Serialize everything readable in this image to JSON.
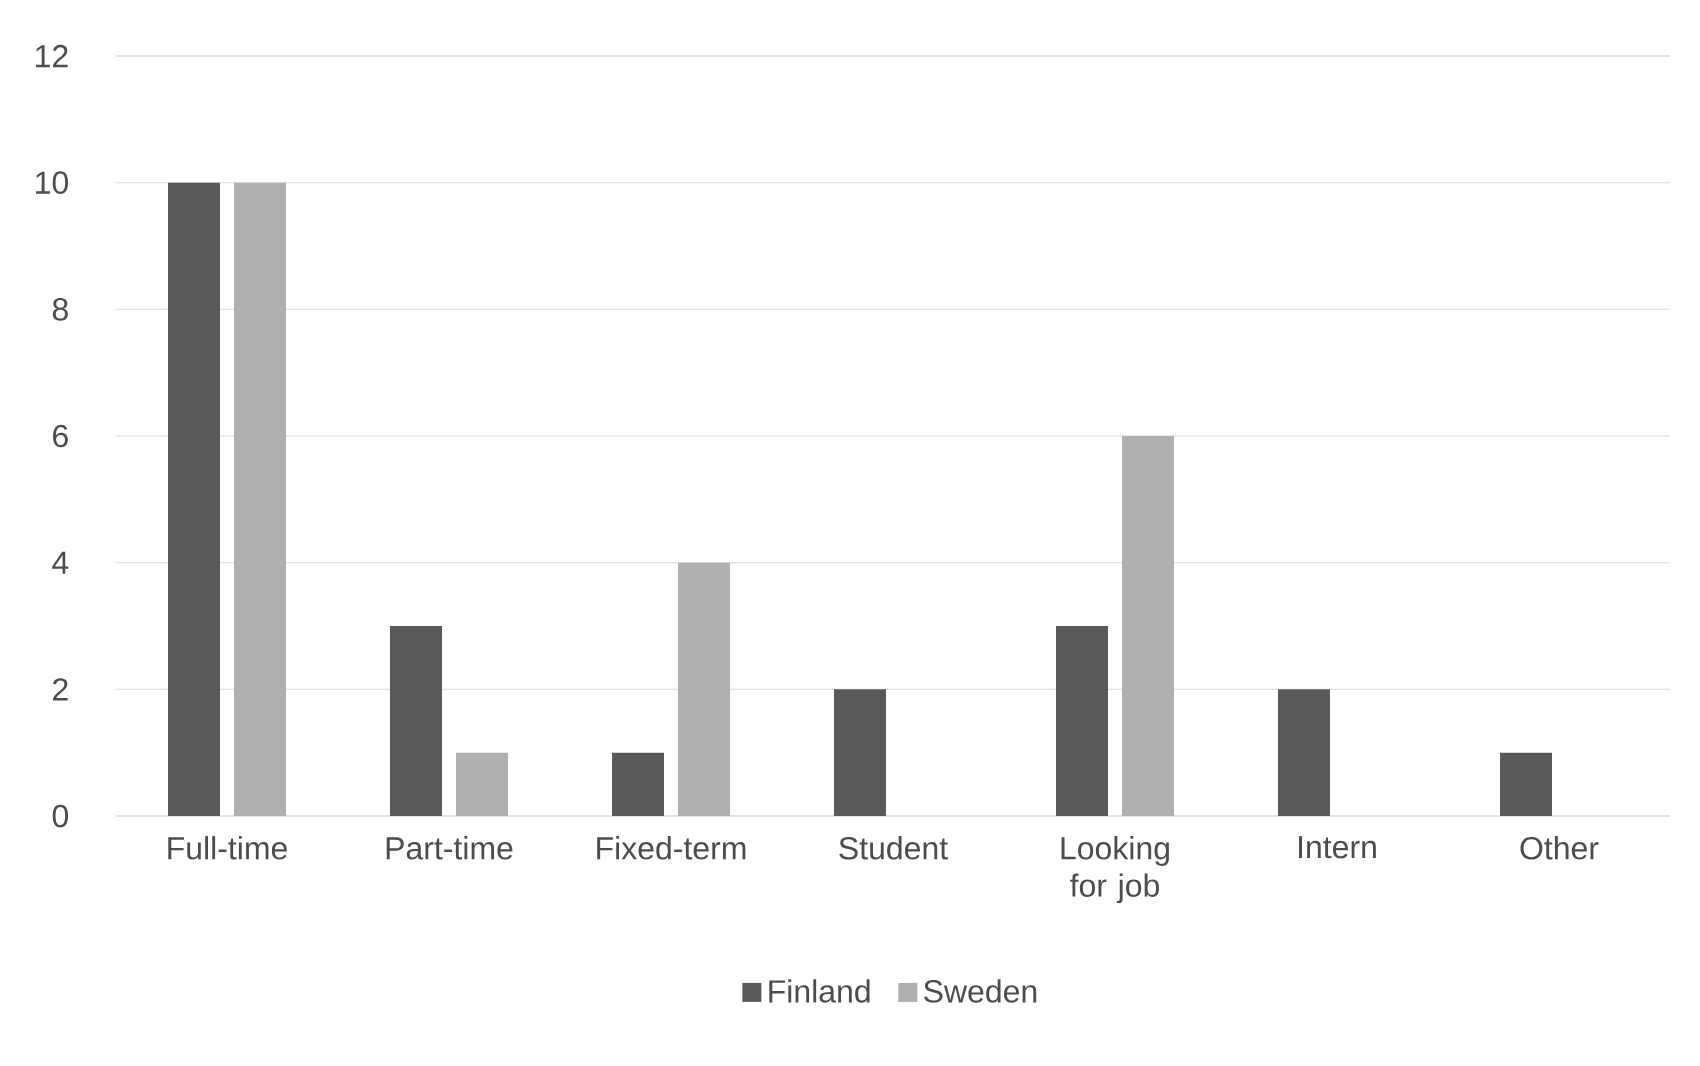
{
  "chart_data": {
    "type": "bar",
    "categories": [
      "Full-time",
      "Part-time",
      "Fixed-term",
      "Student",
      "Looking for job",
      "Intern",
      "Other"
    ],
    "series": [
      {
        "name": "Finland",
        "color": "#595959",
        "values": [
          10,
          3,
          1,
          2,
          3,
          2,
          1
        ]
      },
      {
        "name": "Sweden",
        "color": "#afafaf",
        "values": [
          10,
          1,
          4,
          0,
          6,
          0,
          0
        ]
      }
    ],
    "ylim": [
      0,
      12
    ],
    "yticks": [
      0,
      2,
      4,
      6,
      8,
      10,
      12
    ],
    "grid": "y",
    "legend": "bottom"
  }
}
